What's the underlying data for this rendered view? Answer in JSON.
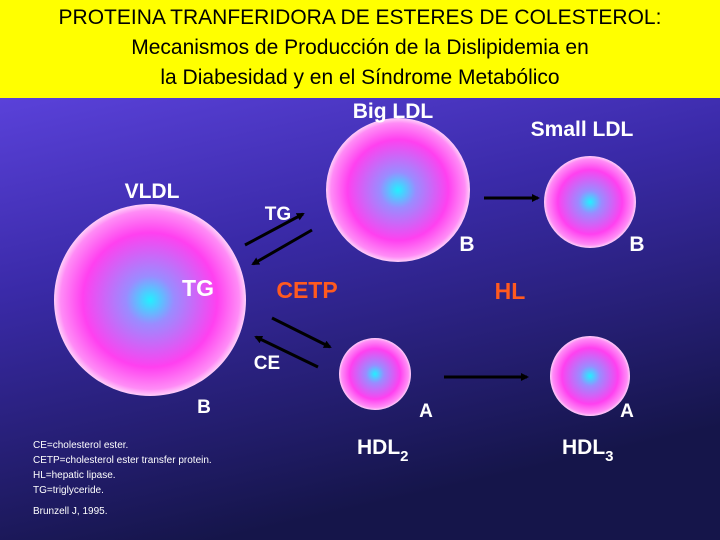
{
  "header": {
    "lines": [
      "PROTEINA TRANFERIDORA DE ESTERES DE COLESTEROL:",
      "Mecanismos de Producción de la Dislipidemia en",
      "la Diabesidad  y en el Síndrome Metabólico"
    ]
  },
  "particles": {
    "vldl": {
      "label": "VLDL",
      "core": "TG",
      "apo": "B"
    },
    "big_ldl": {
      "label": "Big LDL",
      "apo": "B"
    },
    "small_ldl": {
      "label": "Small LDL",
      "apo": "B"
    },
    "hdl2": {
      "label": "HDL",
      "sub": "2",
      "apo": "A"
    },
    "hdl3": {
      "label": "HDL",
      "sub": "3",
      "apo": "A"
    }
  },
  "exchange": {
    "tg": "TG",
    "ce": "CE",
    "cetp": "CETP",
    "hl": "HL"
  },
  "notes": [
    "CE=cholesterol ester.",
    "CETP=cholesterol ester transfer protein.",
    "HL=hepatic lipase.",
    "TG=triglyceride."
  ],
  "citation": "Brunzell J, 1995."
}
